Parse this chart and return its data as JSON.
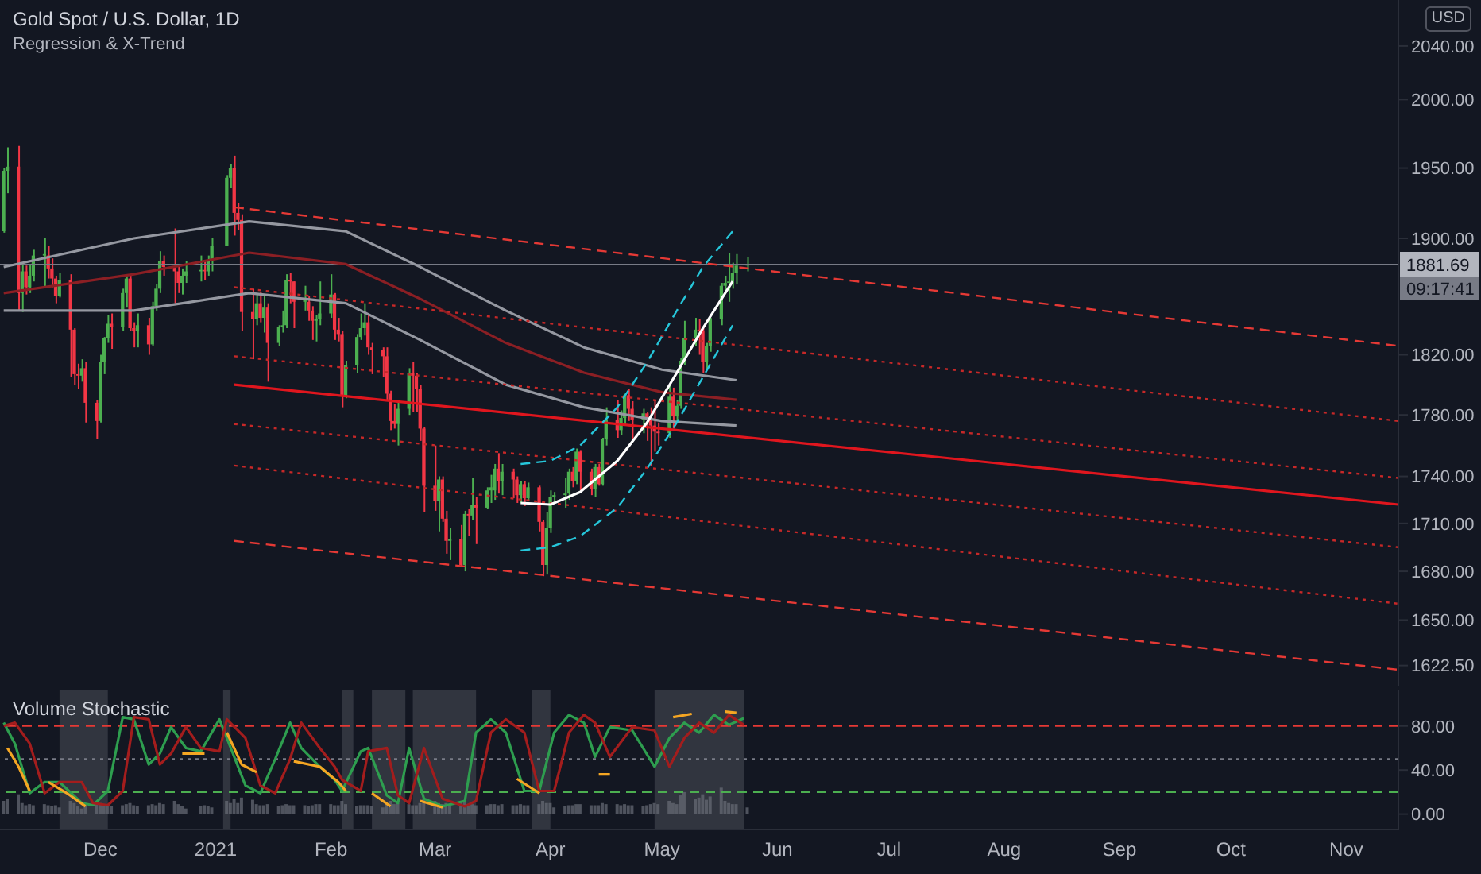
{
  "chart_data": [
    {
      "type": "candlestick",
      "title": "Gold Spot / U.S. Dollar, 1D",
      "subtitle": "Regression & X-Trend",
      "log": "y",
      "tick_labels": "y",
      "xlim": [
        "2020-11-04",
        "2021-11-15"
      ],
      "ylim": [
        1610,
        2075
      ],
      "yticks": [
        {
          "value": 1622.5,
          "label": "1622.50"
        },
        {
          "value": 1650,
          "label": "1650.00"
        },
        {
          "value": 1680,
          "label": "1680.00"
        },
        {
          "value": 1710,
          "label": "1710.00"
        },
        {
          "value": 1740,
          "label": "1740.00"
        },
        {
          "value": 1780,
          "label": "1780.00"
        },
        {
          "value": 1820,
          "label": "1820.00"
        },
        {
          "value": 1900,
          "label": "1900.00"
        },
        {
          "value": 1950,
          "label": "1950.00"
        },
        {
          "value": 2000,
          "label": "2000.00"
        },
        {
          "value": 2040,
          "label": "2040.00"
        }
      ],
      "x": [
        "2020-11-05",
        "2020-11-06",
        "2020-11-09",
        "2020-11-10",
        "2020-11-11",
        "2020-11-12",
        "2020-11-13",
        "2020-11-16",
        "2020-11-17",
        "2020-11-18",
        "2020-11-19",
        "2020-11-20",
        "2020-11-23",
        "2020-11-24",
        "2020-11-25",
        "2020-11-26",
        "2020-11-27",
        "2020-11-30",
        "2020-12-01",
        "2020-12-02",
        "2020-12-03",
        "2020-12-04",
        "2020-12-07",
        "2020-12-08",
        "2020-12-09",
        "2020-12-10",
        "2020-12-11",
        "2020-12-14",
        "2020-12-15",
        "2020-12-16",
        "2020-12-17",
        "2020-12-18",
        "2020-12-21",
        "2020-12-22",
        "2020-12-23",
        "2020-12-24",
        "2020-12-28",
        "2020-12-29",
        "2020-12-30",
        "2020-12-31",
        "2021-01-04",
        "2021-01-05",
        "2021-01-06",
        "2021-01-07",
        "2021-01-08",
        "2021-01-11",
        "2021-01-12",
        "2021-01-13",
        "2021-01-14",
        "2021-01-15",
        "2021-01-18",
        "2021-01-19",
        "2021-01-20",
        "2021-01-21",
        "2021-01-22",
        "2021-01-25",
        "2021-01-26",
        "2021-01-27",
        "2021-01-28",
        "2021-01-29",
        "2021-02-01",
        "2021-02-02",
        "2021-02-03",
        "2021-02-04",
        "2021-02-05",
        "2021-02-08",
        "2021-02-09",
        "2021-02-10",
        "2021-02-11",
        "2021-02-12",
        "2021-02-15",
        "2021-02-16",
        "2021-02-17",
        "2021-02-18",
        "2021-02-19",
        "2021-02-22",
        "2021-02-23",
        "2021-02-24",
        "2021-02-25",
        "2021-02-26",
        "2021-03-01",
        "2021-03-02",
        "2021-03-03",
        "2021-03-04",
        "2021-03-05",
        "2021-03-08",
        "2021-03-09",
        "2021-03-10",
        "2021-03-11",
        "2021-03-12",
        "2021-03-15",
        "2021-03-16",
        "2021-03-17",
        "2021-03-18",
        "2021-03-19",
        "2021-03-22",
        "2021-03-23",
        "2021-03-24",
        "2021-03-25",
        "2021-03-26",
        "2021-03-29",
        "2021-03-30",
        "2021-03-31",
        "2021-04-01",
        "2021-04-02",
        "2021-04-05",
        "2021-04-06",
        "2021-04-07",
        "2021-04-08",
        "2021-04-09",
        "2021-04-12",
        "2021-04-13",
        "2021-04-14",
        "2021-04-15",
        "2021-04-16",
        "2021-04-19",
        "2021-04-20",
        "2021-04-21",
        "2021-04-22",
        "2021-04-23",
        "2021-04-26",
        "2021-04-27",
        "2021-04-28",
        "2021-04-29",
        "2021-04-30",
        "2021-05-03",
        "2021-05-04",
        "2021-05-05",
        "2021-05-06",
        "2021-05-07",
        "2021-05-10",
        "2021-05-11",
        "2021-05-12",
        "2021-05-13",
        "2021-05-14",
        "2021-05-17",
        "2021-05-18",
        "2021-05-19",
        "2021-05-20",
        "2021-05-21",
        "2021-05-24"
      ],
      "ohlc": [
        [
          1905,
          1950,
          1904,
          1948
        ],
        [
          1948,
          1965,
          1932,
          1951
        ],
        [
          1951,
          1966,
          1850,
          1862
        ],
        [
          1862,
          1883,
          1849,
          1877
        ],
        [
          1877,
          1881,
          1861,
          1866
        ],
        [
          1866,
          1882,
          1862,
          1874
        ],
        [
          1874,
          1892,
          1870,
          1888
        ],
        [
          1888,
          1900,
          1866,
          1889
        ],
        [
          1888,
          1895,
          1872,
          1879
        ],
        [
          1879,
          1886,
          1866,
          1872
        ],
        [
          1872,
          1874,
          1855,
          1860
        ],
        [
          1860,
          1876,
          1859,
          1871
        ],
        [
          1871,
          1875,
          1805,
          1837
        ],
        [
          1837,
          1838,
          1800,
          1807
        ],
        [
          1807,
          1814,
          1797,
          1806
        ],
        [
          1806,
          1817,
          1802,
          1811
        ],
        [
          1811,
          1815,
          1775,
          1788
        ],
        [
          1788,
          1790,
          1764,
          1776
        ],
        [
          1776,
          1820,
          1775,
          1815
        ],
        [
          1815,
          1832,
          1807,
          1831
        ],
        [
          1831,
          1847,
          1828,
          1841
        ],
        [
          1841,
          1848,
          1824,
          1839
        ],
        [
          1839,
          1865,
          1836,
          1862
        ],
        [
          1862,
          1875,
          1852,
          1872
        ],
        [
          1872,
          1875,
          1836,
          1838
        ],
        [
          1838,
          1842,
          1825,
          1836
        ],
        [
          1836,
          1848,
          1825,
          1840
        ],
        [
          1840,
          1845,
          1820,
          1827
        ],
        [
          1827,
          1856,
          1826,
          1853
        ],
        [
          1853,
          1868,
          1850,
          1865
        ],
        [
          1865,
          1891,
          1862,
          1884
        ],
        [
          1884,
          1888,
          1874,
          1880
        ],
        [
          1880,
          1907,
          1855,
          1877
        ],
        [
          1877,
          1882,
          1862,
          1869
        ],
        [
          1869,
          1879,
          1861,
          1874
        ],
        [
          1874,
          1884,
          1869,
          1877
        ],
        [
          1877,
          1888,
          1870,
          1878
        ],
        [
          1878,
          1884,
          1871,
          1877
        ],
        [
          1877,
          1888,
          1874,
          1884
        ],
        [
          1884,
          1900,
          1877,
          1895
        ],
        [
          1895,
          1945,
          1895,
          1943
        ],
        [
          1943,
          1953,
          1936,
          1950
        ],
        [
          1950,
          1959,
          1902,
          1918
        ],
        [
          1918,
          1925,
          1906,
          1913
        ],
        [
          1913,
          1917,
          1836,
          1849
        ],
        [
          1849,
          1865,
          1817,
          1844
        ],
        [
          1844,
          1862,
          1840,
          1855
        ],
        [
          1855,
          1863,
          1842,
          1845
        ],
        [
          1845,
          1860,
          1835,
          1852
        ],
        [
          1852,
          1855,
          1802,
          1828
        ],
        [
          1828,
          1840,
          1826,
          1839
        ],
        [
          1839,
          1850,
          1835,
          1840
        ],
        [
          1840,
          1875,
          1838,
          1871
        ],
        [
          1871,
          1876,
          1855,
          1870
        ],
        [
          1870,
          1870,
          1838,
          1856
        ],
        [
          1856,
          1867,
          1850,
          1857
        ],
        [
          1856,
          1860,
          1843,
          1850
        ],
        [
          1850,
          1853,
          1830,
          1843
        ],
        [
          1843,
          1847,
          1829,
          1844
        ],
        [
          1844,
          1870,
          1840,
          1848
        ],
        [
          1848,
          1875,
          1845,
          1861
        ],
        [
          1861,
          1862,
          1830,
          1837
        ],
        [
          1837,
          1845,
          1829,
          1834
        ],
        [
          1834,
          1836,
          1785,
          1793
        ],
        [
          1793,
          1816,
          1791,
          1813
        ],
        [
          1813,
          1834,
          1808,
          1832
        ],
        [
          1832,
          1848,
          1830,
          1838
        ],
        [
          1838,
          1855,
          1833,
          1842
        ],
        [
          1842,
          1848,
          1820,
          1825
        ],
        [
          1825,
          1828,
          1807,
          1823
        ],
        [
          1823,
          1825,
          1805,
          1819
        ],
        [
          1819,
          1825,
          1790,
          1794
        ],
        [
          1794,
          1796,
          1770,
          1776
        ],
        [
          1776,
          1787,
          1771,
          1774
        ],
        [
          1774,
          1789,
          1760,
          1784
        ],
        [
          1784,
          1811,
          1780,
          1808
        ],
        [
          1808,
          1815,
          1782,
          1806
        ],
        [
          1806,
          1808,
          1782,
          1797
        ],
        [
          1797,
          1800,
          1763,
          1771
        ],
        [
          1771,
          1772,
          1717,
          1734
        ],
        [
          1734,
          1760,
          1718,
          1724
        ],
        [
          1724,
          1740,
          1705,
          1738
        ],
        [
          1738,
          1740,
          1711,
          1713
        ],
        [
          1713,
          1718,
          1691,
          1699
        ],
        [
          1699,
          1707,
          1687,
          1700
        ],
        [
          1700,
          1709,
          1683,
          1684
        ],
        [
          1684,
          1718,
          1680,
          1716
        ],
        [
          1716,
          1719,
          1702,
          1715
        ],
        [
          1715,
          1739,
          1712,
          1722
        ],
        [
          1722,
          1727,
          1697,
          1720
        ],
        [
          1720,
          1733,
          1719,
          1731
        ],
        [
          1731,
          1741,
          1723,
          1733
        ],
        [
          1731,
          1748,
          1725,
          1745
        ],
        [
          1745,
          1755,
          1729,
          1737
        ],
        [
          1737,
          1748,
          1728,
          1743
        ],
        [
          1743,
          1745,
          1726,
          1738
        ],
        [
          1738,
          1740,
          1723,
          1728
        ],
        [
          1728,
          1737,
          1723,
          1735
        ],
        [
          1735,
          1737,
          1721,
          1726
        ],
        [
          1726,
          1736,
          1724,
          1733
        ],
        [
          1733,
          1734,
          1705,
          1711
        ],
        [
          1711,
          1712,
          1677,
          1684
        ],
        [
          1684,
          1717,
          1678,
          1707
        ],
        [
          1707,
          1731,
          1704,
          1727
        ],
        [
          1727,
          1730,
          1724,
          1728
        ],
        [
          1728,
          1739,
          1720,
          1729
        ],
        [
          1729,
          1745,
          1725,
          1743
        ],
        [
          1743,
          1746,
          1733,
          1737
        ],
        [
          1737,
          1758,
          1735,
          1756
        ],
        [
          1756,
          1757,
          1731,
          1743
        ],
        [
          1743,
          1745,
          1728,
          1732
        ],
        [
          1732,
          1748,
          1727,
          1746
        ],
        [
          1746,
          1748,
          1734,
          1735
        ],
        [
          1735,
          1765,
          1734,
          1764
        ],
        [
          1764,
          1785,
          1760,
          1777
        ],
        [
          1777,
          1790,
          1765,
          1770
        ],
        [
          1770,
          1783,
          1767,
          1778
        ],
        [
          1778,
          1794,
          1773,
          1793
        ],
        [
          1793,
          1797,
          1776,
          1784
        ],
        [
          1784,
          1789,
          1763,
          1777
        ],
        [
          1777,
          1784,
          1768,
          1781
        ],
        [
          1781,
          1782,
          1763,
          1777
        ],
        [
          1777,
          1785,
          1747,
          1773
        ],
        [
          1773,
          1790,
          1756,
          1769
        ],
        [
          1769,
          1775,
          1760,
          1768
        ],
        [
          1768,
          1799,
          1765,
          1792
        ],
        [
          1792,
          1798,
          1771,
          1779
        ],
        [
          1779,
          1790,
          1775,
          1786
        ],
        [
          1786,
          1818,
          1784,
          1816
        ],
        [
          1816,
          1843,
          1813,
          1831
        ],
        [
          1831,
          1845,
          1826,
          1837
        ],
        [
          1837,
          1844,
          1820,
          1836
        ],
        [
          1836,
          1838,
          1808,
          1815
        ],
        [
          1815,
          1828,
          1810,
          1826
        ],
        [
          1826,
          1845,
          1822,
          1844
        ],
        [
          1844,
          1869,
          1840,
          1867
        ],
        [
          1867,
          1874,
          1862,
          1869
        ],
        [
          1869,
          1890,
          1856,
          1870
        ],
        [
          1870,
          1883,
          1865,
          1876
        ],
        [
          1876,
          1889,
          1868,
          1881
        ],
        [
          1881,
          1887,
          1877,
          1881.69
        ]
      ],
      "series": [
        {
          "type": "line",
          "color": "#9598a1",
          "x": [
            "2020-11-05",
            "2020-12-10",
            "2021-01-10",
            "2021-02-05",
            "2021-02-25",
            "2021-03-20",
            "2021-04-10",
            "2021-05-01",
            "2021-05-21"
          ],
          "values": [
            1880,
            1900,
            1912,
            1905,
            1880,
            1850,
            1825,
            1810,
            1803
          ]
        },
        {
          "type": "line",
          "color": "#8b1f24",
          "x": [
            "2020-11-05",
            "2020-12-10",
            "2021-01-10",
            "2021-02-05",
            "2021-02-25",
            "2021-03-20",
            "2021-04-10",
            "2021-05-01",
            "2021-05-21"
          ],
          "values": [
            1862,
            1875,
            1890,
            1882,
            1858,
            1828,
            1808,
            1795,
            1790
          ]
        },
        {
          "type": "line",
          "color": "#9598a1",
          "x": [
            "2020-11-05",
            "2020-12-10",
            "2021-01-10",
            "2021-02-05",
            "2021-02-25",
            "2021-03-20",
            "2021-04-10",
            "2021-05-01",
            "2021-05-21"
          ],
          "values": [
            1850,
            1850,
            1862,
            1855,
            1830,
            1800,
            1785,
            1776,
            1773
          ]
        },
        {
          "type": "line",
          "color": "#e53935",
          "line_style": "dashed",
          "x": [
            "2021-01-06",
            "2021-11-15"
          ],
          "values": [
            1922,
            1826
          ]
        },
        {
          "type": "line",
          "color": "#c62828",
          "line_style": "dotted",
          "x": [
            "2021-01-06",
            "2021-11-15"
          ],
          "values": [
            1866,
            1776
          ]
        },
        {
          "type": "line",
          "color": "#c62828",
          "line_style": "dotted",
          "x": [
            "2021-01-06",
            "2021-11-15"
          ],
          "values": [
            1819,
            1739
          ]
        },
        {
          "type": "line",
          "color": "#e0161e",
          "x": [
            "2021-01-06",
            "2021-11-15"
          ],
          "values": [
            1800,
            1722
          ]
        },
        {
          "type": "line",
          "color": "#c62828",
          "line_style": "dotted",
          "x": [
            "2021-01-06",
            "2021-11-15"
          ],
          "values": [
            1774,
            1695
          ]
        },
        {
          "type": "line",
          "color": "#c62828",
          "line_style": "dotted",
          "x": [
            "2021-01-06",
            "2021-11-15"
          ],
          "values": [
            1747,
            1660
          ]
        },
        {
          "type": "line",
          "color": "#e53935",
          "line_style": "dashed",
          "x": [
            "2021-01-06",
            "2021-11-15"
          ],
          "values": [
            1699,
            1620
          ]
        },
        {
          "type": "line",
          "color": "#26c6da",
          "line_style": "dashed",
          "x": [
            "2021-03-24",
            "2021-04-01",
            "2021-04-09",
            "2021-04-19",
            "2021-04-27",
            "2021-05-05",
            "2021-05-12",
            "2021-05-20"
          ],
          "values": [
            1748,
            1750,
            1760,
            1785,
            1815,
            1850,
            1880,
            1905
          ]
        },
        {
          "type": "line",
          "color": "#ffffff",
          "x": [
            "2021-03-24",
            "2021-04-01",
            "2021-04-09",
            "2021-04-19",
            "2021-04-27",
            "2021-05-05",
            "2021-05-12",
            "2021-05-20"
          ],
          "values": [
            1723,
            1722,
            1730,
            1750,
            1775,
            1808,
            1838,
            1870
          ]
        },
        {
          "type": "line",
          "color": "#26c6da",
          "line_style": "dashed",
          "x": [
            "2021-03-24",
            "2021-04-01",
            "2021-04-09",
            "2021-04-19",
            "2021-04-27",
            "2021-05-05",
            "2021-05-12",
            "2021-05-20"
          ],
          "values": [
            1693,
            1695,
            1702,
            1720,
            1745,
            1775,
            1805,
            1840
          ]
        }
      ],
      "ref_lines": [
        {
          "axis": "y",
          "value": 1881.69,
          "label": "1881.69",
          "color": "#787b86"
        }
      ],
      "annotations": [
        "USD",
        "09:17:41"
      ]
    },
    {
      "type": "line",
      "title": "Volume Stochastic",
      "xlim": [
        "2020-11-04",
        "2021-11-15"
      ],
      "xticks": [
        {
          "value": "2020-12-01",
          "label": "Dec"
        },
        {
          "value": "2021-01-01",
          "label": "2021"
        },
        {
          "value": "2021-02-01",
          "label": "Feb"
        },
        {
          "value": "2021-03-01",
          "label": "Mar"
        },
        {
          "value": "2021-04-01",
          "label": "Apr"
        },
        {
          "value": "2021-05-01",
          "label": "May"
        },
        {
          "value": "2021-06-01",
          "label": "Jun"
        },
        {
          "value": "2021-07-01",
          "label": "Jul"
        },
        {
          "value": "2021-08-01",
          "label": "Aug"
        },
        {
          "value": "2021-09-01",
          "label": "Sep"
        },
        {
          "value": "2021-10-01",
          "label": "Oct"
        },
        {
          "value": "2021-11-01",
          "label": "Nov"
        }
      ],
      "ylim": [
        -14,
        113
      ],
      "yticks": [
        {
          "value": 0,
          "label": "0.00"
        },
        {
          "value": 40,
          "label": "40.00"
        },
        {
          "value": 80,
          "label": "80.00"
        }
      ],
      "x": [
        "2020-11-05",
        "2020-11-06",
        "2020-11-09",
        "2020-11-10",
        "2020-11-11",
        "2020-11-12",
        "2020-11-13",
        "2020-11-16",
        "2020-11-17",
        "2020-11-18",
        "2020-11-19",
        "2020-11-20",
        "2020-11-23",
        "2020-11-24",
        "2020-11-25",
        "2020-11-26",
        "2020-11-27",
        "2020-11-30",
        "2020-12-01",
        "2020-12-02",
        "2020-12-03",
        "2020-12-04",
        "2020-12-07",
        "2020-12-08",
        "2020-12-09",
        "2020-12-10",
        "2020-12-11",
        "2020-12-14",
        "2020-12-15",
        "2020-12-16",
        "2020-12-17",
        "2020-12-18",
        "2020-12-21",
        "2020-12-22",
        "2020-12-23",
        "2020-12-24",
        "2020-12-28",
        "2020-12-29",
        "2020-12-30",
        "2020-12-31",
        "2021-01-04",
        "2021-01-05",
        "2021-01-06",
        "2021-01-07",
        "2021-01-08",
        "2021-01-11",
        "2021-01-12",
        "2021-01-13",
        "2021-01-14",
        "2021-01-15",
        "2021-01-18",
        "2021-01-19",
        "2021-01-20",
        "2021-01-21",
        "2021-01-22",
        "2021-01-25",
        "2021-01-26",
        "2021-01-27",
        "2021-01-28",
        "2021-01-29",
        "2021-02-01",
        "2021-02-02",
        "2021-02-03",
        "2021-02-04",
        "2021-02-05",
        "2021-02-08",
        "2021-02-09",
        "2021-02-10",
        "2021-02-11",
        "2021-02-12",
        "2021-02-15",
        "2021-02-16",
        "2021-02-17",
        "2021-02-18",
        "2021-02-19",
        "2021-02-22",
        "2021-02-23",
        "2021-02-24",
        "2021-02-25",
        "2021-02-26",
        "2021-03-01",
        "2021-03-02",
        "2021-03-03",
        "2021-03-04",
        "2021-03-05",
        "2021-03-08",
        "2021-03-09",
        "2021-03-10",
        "2021-03-11",
        "2021-03-12",
        "2021-03-15",
        "2021-03-16",
        "2021-03-17",
        "2021-03-18",
        "2021-03-19",
        "2021-03-22",
        "2021-03-23",
        "2021-03-24",
        "2021-03-25",
        "2021-03-26",
        "2021-03-29",
        "2021-03-30",
        "2021-03-31",
        "2021-04-01",
        "2021-04-02",
        "2021-04-05",
        "2021-04-06",
        "2021-04-07",
        "2021-04-08",
        "2021-04-09",
        "2021-04-12",
        "2021-04-13",
        "2021-04-14",
        "2021-04-15",
        "2021-04-16",
        "2021-04-19",
        "2021-04-20",
        "2021-04-21",
        "2021-04-22",
        "2021-04-23",
        "2021-04-26",
        "2021-04-27",
        "2021-04-28",
        "2021-04-29",
        "2021-04-30",
        "2021-05-03",
        "2021-05-04",
        "2021-05-05",
        "2021-05-06",
        "2021-05-07",
        "2021-05-10",
        "2021-05-11",
        "2021-05-12",
        "2021-05-13",
        "2021-05-14",
        "2021-05-17",
        "2021-05-18",
        "2021-05-19",
        "2021-05-20",
        "2021-05-21",
        "2021-05-24"
      ],
      "series": [
        {
          "type": "bar",
          "color": "#6a6d78",
          "values": [
            12,
            14,
            18,
            10,
            8,
            9,
            8,
            9,
            8,
            7,
            8,
            6,
            12,
            10,
            7,
            5,
            8,
            9,
            10,
            9,
            8,
            7,
            8,
            9,
            10,
            8,
            7,
            8,
            9,
            8,
            10,
            9,
            12,
            9,
            7,
            5,
            7,
            8,
            7,
            6,
            12,
            10,
            14,
            10,
            15,
            13,
            9,
            8,
            8,
            9,
            7,
            8,
            9,
            8,
            8,
            8,
            7,
            8,
            9,
            9,
            9,
            8,
            8,
            12,
            9,
            7,
            8,
            8,
            8,
            7,
            6,
            9,
            12,
            9,
            10,
            9,
            8,
            8,
            10,
            14,
            12,
            10,
            9,
            10,
            9,
            11,
            12,
            9,
            9,
            8,
            8,
            9,
            9,
            8,
            9,
            8,
            8,
            9,
            8,
            8,
            9,
            12,
            10,
            10,
            6,
            7,
            8,
            8,
            9,
            9,
            8,
            8,
            8,
            10,
            9,
            9,
            8,
            9,
            8,
            8,
            7,
            8,
            9,
            10,
            9,
            12,
            10,
            9,
            17,
            20,
            14,
            15,
            18,
            13,
            16,
            24,
            12,
            10,
            9,
            9,
            6
          ]
        },
        {
          "type": "line",
          "color": "#2e9e4f",
          "x": [
            "2020-11-05",
            "2020-11-08",
            "2020-11-12",
            "2020-11-16",
            "2020-11-20",
            "2020-11-26",
            "2020-11-29",
            "2020-12-03",
            "2020-12-07",
            "2020-12-10",
            "2020-12-14",
            "2020-12-17",
            "2020-12-20",
            "2020-12-24",
            "2020-12-28",
            "2021-01-02",
            "2021-01-04",
            "2021-01-09",
            "2021-01-13",
            "2021-01-17",
            "2021-01-21",
            "2021-01-24",
            "2021-01-29",
            "2021-02-02",
            "2021-02-04",
            "2021-02-09",
            "2021-02-11",
            "2021-02-16",
            "2021-02-19",
            "2021-02-22",
            "2021-02-26",
            "2021-03-03",
            "2021-03-09",
            "2021-03-12",
            "2021-03-16",
            "2021-03-20",
            "2021-03-25",
            "2021-03-29",
            "2021-04-02",
            "2021-04-06",
            "2021-04-10",
            "2021-04-13",
            "2021-04-17",
            "2021-04-23",
            "2021-04-29",
            "2021-05-03",
            "2021-05-07",
            "2021-05-11",
            "2021-05-15",
            "2021-05-19",
            "2021-05-23"
          ],
          "values": [
            83,
            64,
            19,
            29,
            29,
            10,
            8,
            21,
            88,
            86,
            45,
            55,
            79,
            60,
            57,
            86,
            69,
            26,
            19,
            50,
            83,
            60,
            43,
            31,
            21,
            57,
            60,
            17,
            10,
            60,
            14,
            7,
            12,
            74,
            86,
            74,
            21,
            21,
            74,
            90,
            83,
            52,
            79,
            76,
            43,
            69,
            83,
            74,
            90,
            81,
            87
          ]
        },
        {
          "type": "line",
          "color": "#a31d1d",
          "x": [
            "2020-11-05",
            "2020-11-08",
            "2020-11-12",
            "2020-11-16",
            "2020-11-20",
            "2020-11-26",
            "2020-11-29",
            "2020-12-03",
            "2020-12-07",
            "2020-12-10",
            "2020-12-14",
            "2020-12-17",
            "2020-12-20",
            "2020-12-24",
            "2020-12-28",
            "2021-01-02",
            "2021-01-04",
            "2021-01-09",
            "2021-01-13",
            "2021-01-17",
            "2021-01-21",
            "2021-01-24",
            "2021-01-29",
            "2021-02-02",
            "2021-02-04",
            "2021-02-09",
            "2021-02-11",
            "2021-02-16",
            "2021-02-19",
            "2021-02-22",
            "2021-02-26",
            "2021-03-03",
            "2021-03-09",
            "2021-03-12",
            "2021-03-16",
            "2021-03-20",
            "2021-03-25",
            "2021-03-29",
            "2021-04-02",
            "2021-04-06",
            "2021-04-10",
            "2021-04-13",
            "2021-04-17",
            "2021-04-23",
            "2021-04-29",
            "2021-05-03",
            "2021-05-07",
            "2021-05-11",
            "2021-05-15",
            "2021-05-19",
            "2021-05-23"
          ],
          "values": [
            80,
            83,
            64,
            19,
            29,
            29,
            10,
            8,
            21,
            88,
            86,
            45,
            55,
            79,
            60,
            57,
            86,
            69,
            26,
            19,
            50,
            83,
            60,
            43,
            31,
            21,
            57,
            60,
            17,
            10,
            60,
            14,
            7,
            12,
            74,
            86,
            74,
            21,
            21,
            74,
            90,
            83,
            52,
            79,
            76,
            43,
            69,
            83,
            74,
            90,
            81
          ]
        },
        {
          "type": "line",
          "color": "#f5a623",
          "x": [
            "2020-11-06",
            "2020-11-09",
            "2020-11-12",
            "2020-11-14",
            "2020-11-17",
            "2020-11-22",
            "2020-11-27",
            "2020-12-10",
            "2020-12-23",
            "2020-12-29",
            "2021-01-01",
            "2021-01-04",
            "2021-01-08",
            "2021-01-12",
            "2021-01-17",
            "2021-01-22",
            "2021-01-29",
            "2021-02-03",
            "2021-02-05",
            "2021-02-08",
            "2021-02-12",
            "2021-02-17",
            "2021-02-21",
            "2021-02-25",
            "2021-03-03",
            "2021-03-12",
            "2021-03-23",
            "2021-03-29",
            "2021-04-05",
            "2021-04-14",
            "2021-04-17",
            "2021-04-25",
            "2021-05-04",
            "2021-05-09",
            "2021-05-14",
            "2021-05-18",
            "2021-05-21"
          ],
          "values": [
            60,
            43,
            21,
            null,
            29,
            19,
            7,
            null,
            55,
            55,
            null,
            74,
            45,
            38,
            null,
            48,
            43,
            29,
            21,
            null,
            19,
            7,
            null,
            12,
            6,
            null,
            32,
            19,
            null,
            36,
            36,
            null,
            88,
            91,
            null,
            93,
            92
          ]
        }
      ],
      "ref_lines": [
        {
          "axis": "y",
          "value": 80,
          "color": "#e53935",
          "line_style": "dashed"
        },
        {
          "axis": "y",
          "value": 50,
          "color": "#787b86",
          "line_style": "dotted"
        },
        {
          "axis": "y",
          "value": 20,
          "color": "#4caf50",
          "line_style": "dashed"
        }
      ],
      "bands": [
        {
          "axis": "x",
          "from": "2020-11-20",
          "to": "2020-12-03",
          "color": "#787b86"
        },
        {
          "axis": "x",
          "from": "2021-01-03",
          "to": "2021-01-05",
          "color": "#787b86"
        },
        {
          "axis": "x",
          "from": "2021-02-04",
          "to": "2021-02-07",
          "color": "#787b86"
        },
        {
          "axis": "x",
          "from": "2021-02-12",
          "to": "2021-02-21",
          "color": "#787b86"
        },
        {
          "axis": "x",
          "from": "2021-02-23",
          "to": "2021-03-12",
          "color": "#787b86"
        },
        {
          "axis": "x",
          "from": "2021-03-27",
          "to": "2021-04-01",
          "color": "#787b86"
        },
        {
          "axis": "x",
          "from": "2021-04-29",
          "to": "2021-05-23",
          "color": "#787b86"
        }
      ]
    }
  ]
}
